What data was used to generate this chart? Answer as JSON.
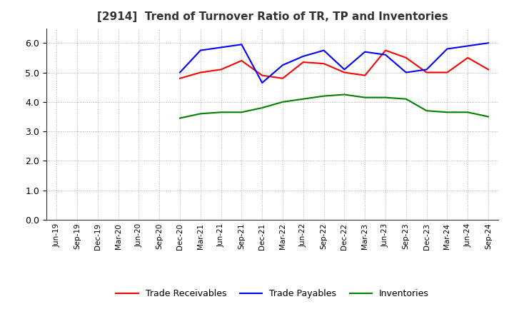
{
  "title": "[2914]  Trend of Turnover Ratio of TR, TP and Inventories",
  "x_labels": [
    "Jun-19",
    "Sep-19",
    "Dec-19",
    "Mar-20",
    "Jun-20",
    "Sep-20",
    "Dec-20",
    "Mar-21",
    "Jun-21",
    "Sep-21",
    "Dec-21",
    "Mar-22",
    "Jun-22",
    "Sep-22",
    "Dec-22",
    "Mar-23",
    "Jun-23",
    "Sep-23",
    "Dec-23",
    "Mar-24",
    "Jun-24",
    "Sep-24"
  ],
  "trade_receivables": [
    null,
    null,
    null,
    null,
    null,
    null,
    4.8,
    5.0,
    5.1,
    5.4,
    4.9,
    4.8,
    5.35,
    5.3,
    5.0,
    4.9,
    5.75,
    5.5,
    5.0,
    5.0,
    5.5,
    5.1
  ],
  "trade_payables": [
    null,
    null,
    null,
    null,
    null,
    null,
    5.0,
    5.75,
    5.85,
    5.95,
    4.65,
    5.25,
    5.55,
    5.75,
    5.1,
    5.7,
    5.6,
    5.0,
    5.1,
    5.8,
    5.9,
    6.0
  ],
  "inventories": [
    null,
    null,
    null,
    null,
    null,
    null,
    3.45,
    3.6,
    3.65,
    3.65,
    3.8,
    4.0,
    4.1,
    4.2,
    4.25,
    4.15,
    4.15,
    4.1,
    3.7,
    3.65,
    3.65,
    3.5
  ],
  "ylim": [
    0.0,
    6.5
  ],
  "yticks": [
    0.0,
    1.0,
    2.0,
    3.0,
    4.0,
    5.0,
    6.0
  ],
  "tr_color": "#ff0000",
  "tp_color": "#0000ff",
  "inv_color": "#008000",
  "bg_color": "#ffffff",
  "grid_color": "#aaaaaa"
}
